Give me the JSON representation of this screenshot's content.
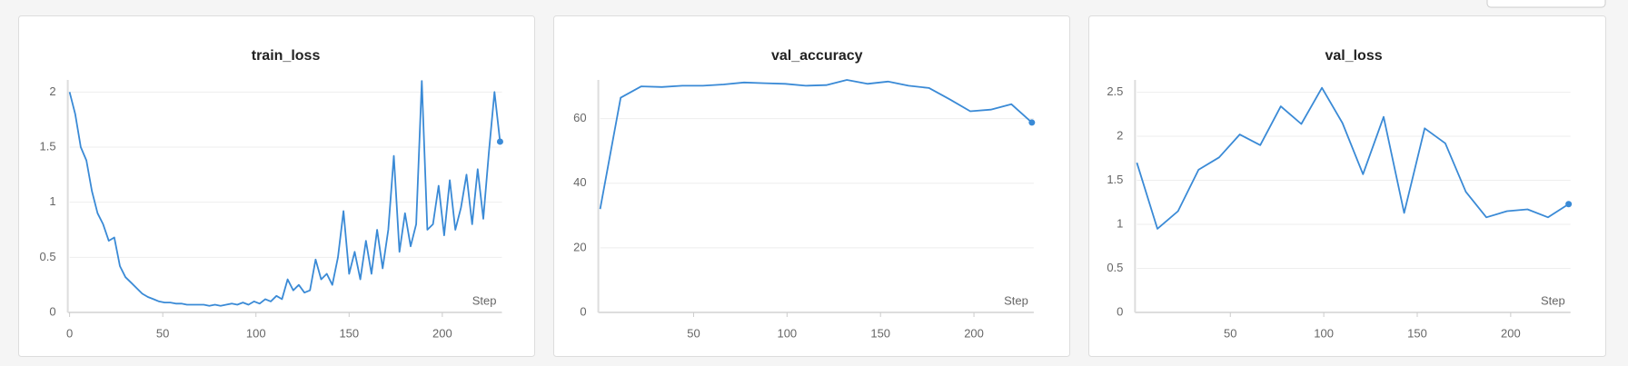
{
  "chart_data": [
    {
      "type": "line",
      "title": "train_loss",
      "x_label": "Step",
      "color": "#3a8ad6",
      "grid": true,
      "xlim": [
        0,
        232
      ],
      "ylim": [
        0,
        2.11
      ],
      "xticks": [
        0,
        50,
        100,
        150,
        200
      ],
      "yticks": [
        0,
        0.5,
        1,
        1.5,
        2
      ],
      "x": [
        0,
        3,
        6,
        9,
        12,
        15,
        18,
        21,
        24,
        27,
        30,
        33,
        36,
        39,
        42,
        45,
        48,
        51,
        54,
        57,
        60,
        63,
        66,
        69,
        72,
        75,
        78,
        81,
        84,
        87,
        90,
        93,
        96,
        99,
        102,
        105,
        108,
        111,
        114,
        117,
        120,
        123,
        126,
        129,
        132,
        135,
        138,
        141,
        144,
        147,
        150,
        153,
        156,
        159,
        162,
        165,
        168,
        171,
        174,
        177,
        180,
        183,
        186,
        189,
        192,
        195,
        198,
        201,
        204,
        207,
        210,
        213,
        216,
        219,
        222,
        225,
        228,
        231
      ],
      "values": [
        2.0,
        1.8,
        1.5,
        1.38,
        1.1,
        0.9,
        0.8,
        0.65,
        0.68,
        0.42,
        0.32,
        0.27,
        0.22,
        0.17,
        0.14,
        0.12,
        0.1,
        0.09,
        0.09,
        0.08,
        0.08,
        0.07,
        0.07,
        0.07,
        0.07,
        0.06,
        0.07,
        0.06,
        0.07,
        0.08,
        0.07,
        0.09,
        0.07,
        0.1,
        0.08,
        0.12,
        0.1,
        0.15,
        0.12,
        0.3,
        0.2,
        0.25,
        0.18,
        0.2,
        0.48,
        0.3,
        0.35,
        0.25,
        0.5,
        0.92,
        0.35,
        0.55,
        0.3,
        0.65,
        0.35,
        0.75,
        0.4,
        0.75,
        1.42,
        0.55,
        0.9,
        0.6,
        0.8,
        2.1,
        0.75,
        0.8,
        1.15,
        0.7,
        1.2,
        0.75,
        0.95,
        1.25,
        0.8,
        1.3,
        0.85,
        1.45,
        2.0,
        1.55
      ]
    },
    {
      "type": "line",
      "title": "val_accuracy",
      "x_label": "Step",
      "color": "#3a8ad6",
      "grid": true,
      "xlim": [
        0,
        232
      ],
      "ylim": [
        0,
        72
      ],
      "xticks": [
        50,
        100,
        150,
        200
      ],
      "yticks": [
        0,
        20,
        40,
        60
      ],
      "x": [
        0,
        11,
        22,
        33,
        44,
        55,
        66,
        77,
        88,
        99,
        110,
        121,
        132,
        143,
        154,
        165,
        176,
        187,
        198,
        209,
        220,
        231
      ],
      "values": [
        32,
        66.5,
        70,
        69.8,
        70.2,
        70.2,
        70.6,
        71.2,
        71,
        70.8,
        70.2,
        70.4,
        72,
        70.8,
        71.5,
        70.2,
        69.5,
        66,
        62.3,
        62.8,
        64.5,
        58.8
      ]
    },
    {
      "type": "line",
      "title": "val_loss",
      "x_label": "Step",
      "color": "#3a8ad6",
      "grid": true,
      "xlim": [
        0,
        232
      ],
      "ylim": [
        0,
        2.64
      ],
      "xticks": [
        50,
        100,
        150,
        200
      ],
      "yticks": [
        0,
        0.5,
        1,
        1.5,
        2,
        2.5
      ],
      "x": [
        0,
        11,
        22,
        33,
        44,
        55,
        66,
        77,
        88,
        99,
        110,
        121,
        132,
        143,
        154,
        165,
        176,
        187,
        198,
        209,
        220,
        231
      ],
      "values": [
        1.7,
        0.95,
        1.15,
        1.62,
        1.76,
        2.02,
        1.9,
        2.34,
        2.14,
        2.55,
        2.15,
        1.57,
        2.22,
        1.13,
        2.09,
        1.92,
        1.37,
        1.08,
        1.15,
        1.17,
        1.08,
        1.23
      ]
    }
  ]
}
